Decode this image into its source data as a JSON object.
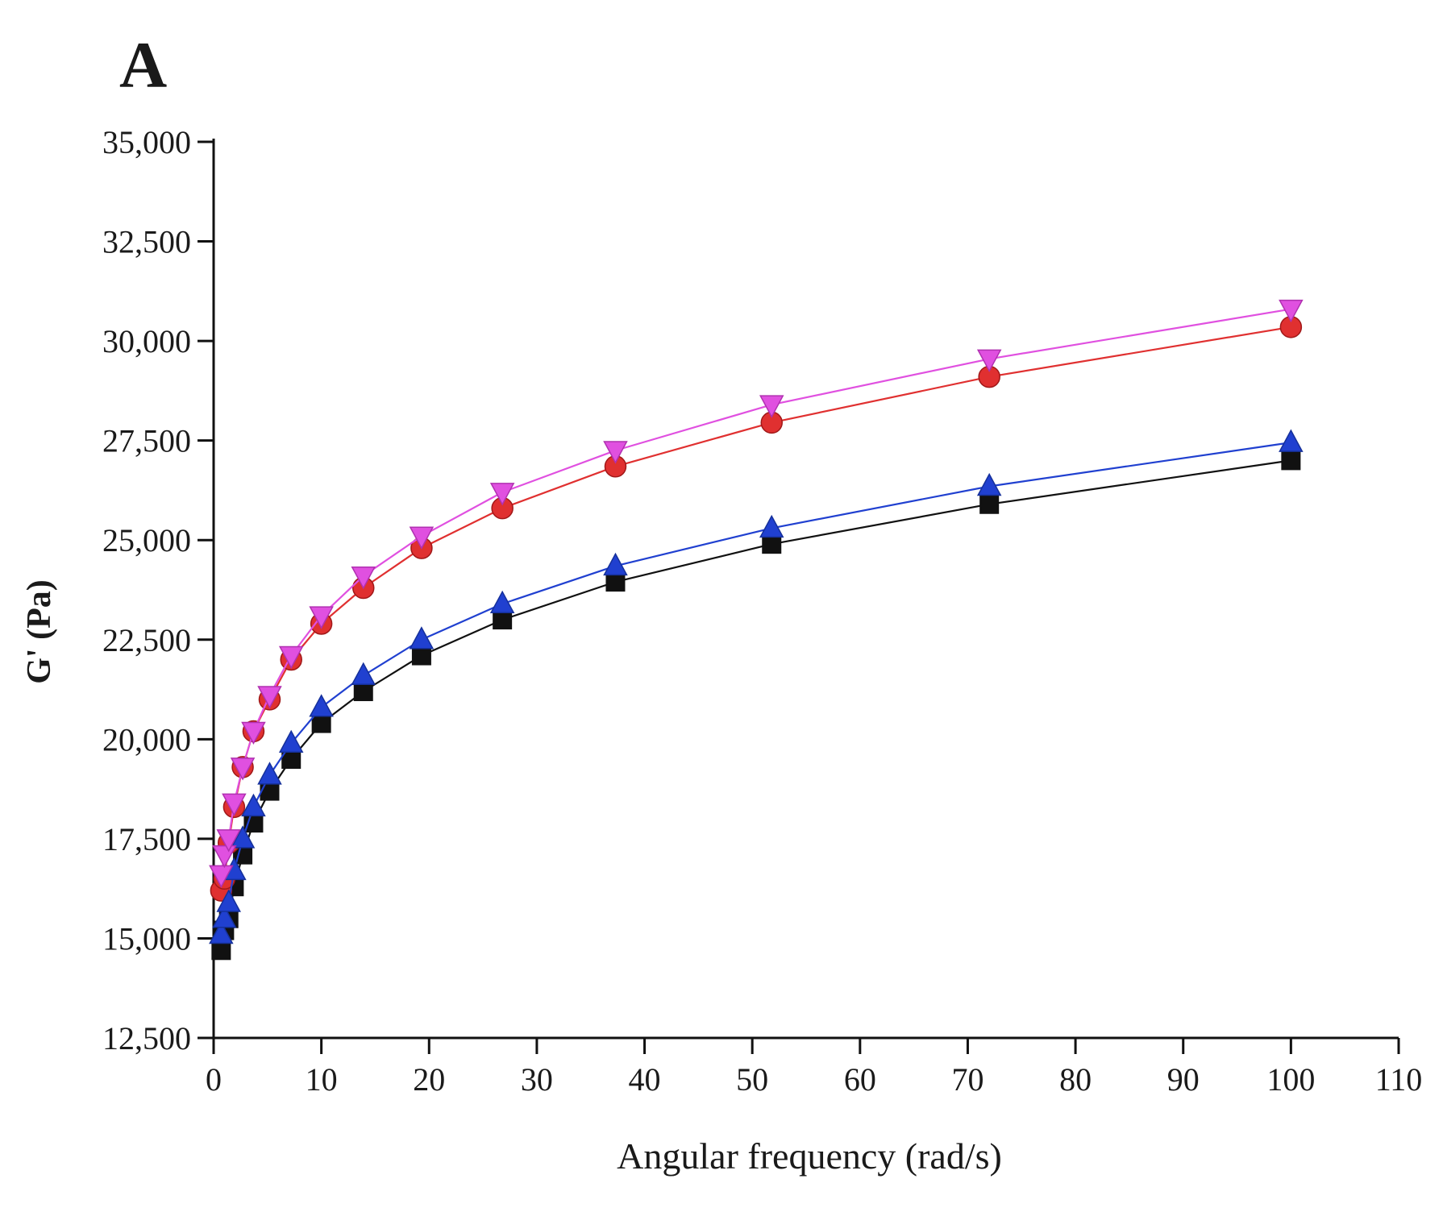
{
  "panel_label": "A",
  "chart_data": {
    "type": "line",
    "title": "",
    "xlabel": "Angular frequency (rad/s)",
    "ylabel": "G' (Pa)",
    "xlim": [
      0,
      110
    ],
    "ylim": [
      12500,
      35000
    ],
    "x_ticks": [
      0,
      10,
      20,
      30,
      40,
      50,
      60,
      70,
      80,
      90,
      100,
      110
    ],
    "x_tick_labels": [
      "0",
      "10",
      "20",
      "30",
      "40",
      "50",
      "60",
      "70",
      "80",
      "90",
      "100",
      "110"
    ],
    "y_ticks": [
      12500,
      15000,
      17500,
      20000,
      22500,
      25000,
      27500,
      30000,
      32500,
      35000
    ],
    "y_tick_labels": [
      "12,500",
      "15,000",
      "17,500",
      "20,000",
      "22,500",
      "25,000",
      "27,500",
      "30,000",
      "32,500",
      "35,000"
    ],
    "x": [
      0.7,
      1.0,
      1.4,
      1.9,
      2.7,
      3.7,
      5.2,
      7.2,
      10.0,
      13.9,
      19.3,
      26.8,
      37.3,
      51.8,
      72.0,
      100.0
    ],
    "series": [
      {
        "name": "series-1-square",
        "color": "#111111",
        "marker": "square",
        "values": [
          14700,
          15200,
          15500,
          16300,
          17100,
          17900,
          18700,
          19500,
          20400,
          21200,
          22100,
          23000,
          23950,
          24900,
          25900,
          27000
        ]
      },
      {
        "name": "series-2-circle",
        "color": "#e03030",
        "marker": "circle",
        "values": [
          16200,
          16500,
          17400,
          18300,
          19300,
          20200,
          21000,
          22000,
          22900,
          23800,
          24800,
          25800,
          26850,
          27950,
          29100,
          30350
        ]
      },
      {
        "name": "series-3-triangle-up",
        "color": "#2040d0",
        "marker": "triangle-up",
        "values": [
          15100,
          15500,
          15900,
          16700,
          17500,
          18300,
          19100,
          19900,
          20800,
          21600,
          22500,
          23400,
          24350,
          25300,
          26350,
          27450
        ]
      },
      {
        "name": "series-4-triangle-down",
        "color": "#e050e0",
        "marker": "triangle-down",
        "values": [
          16600,
          17100,
          17500,
          18400,
          19300,
          20200,
          21100,
          22100,
          23100,
          24100,
          25100,
          26200,
          27250,
          28400,
          29550,
          30800
        ]
      }
    ],
    "legend": "none",
    "grid": false
  }
}
